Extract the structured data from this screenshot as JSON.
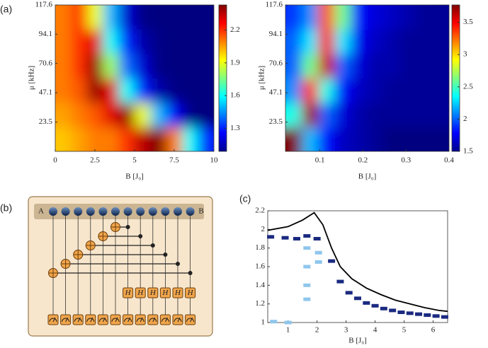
{
  "chart_data": [
    {
      "type": "heatmap",
      "panel_label": "(a)",
      "xlabel": "B [J₀]",
      "ylabel": "μ [kHz]",
      "xlim": [
        0,
        10
      ],
      "ylim": [
        0,
        117.6
      ],
      "xticks": [
        0,
        2.5,
        5,
        7.5,
        10
      ],
      "yticks": [
        23.5,
        47.1,
        70.6,
        94.1,
        117.6
      ],
      "clim": [
        1.09,
        2.43
      ],
      "cticks": [
        1.3,
        1.6,
        1.9,
        2.2
      ],
      "x": [
        0.5,
        1.5,
        2.5,
        3.5,
        4.5,
        5.5,
        6.5,
        7.5,
        8.5,
        9.5
      ],
      "y": [
        9.8,
        29.4,
        49,
        68.6,
        88.2,
        107.8
      ],
      "z": [
        [
          2.0,
          2.05,
          2.1,
          2.1,
          2.2,
          2.35,
          2.45,
          2.1,
          1.6,
          1.3
        ],
        [
          2.05,
          2.1,
          2.15,
          2.3,
          2.4,
          1.9,
          1.5,
          1.25,
          1.1,
          1.05
        ],
        [
          2.1,
          2.15,
          2.4,
          2.3,
          1.6,
          1.3,
          1.15,
          1.1,
          1.05,
          1.05
        ],
        [
          2.1,
          2.2,
          2.4,
          1.8,
          1.4,
          1.2,
          1.1,
          1.05,
          1.05,
          1.05
        ],
        [
          2.1,
          2.2,
          2.3,
          1.6,
          1.3,
          1.15,
          1.1,
          1.05,
          1.05,
          1.05
        ],
        [
          2.1,
          2.2,
          1.9,
          1.5,
          1.2,
          1.1,
          1.05,
          1.05,
          1.05,
          1.05
        ]
      ]
    },
    {
      "type": "heatmap",
      "xlabel": "B [J₀]",
      "ylabel": "μ [kHz]",
      "xlim": [
        0.02,
        0.4
      ],
      "ylim": [
        0,
        117.6
      ],
      "xticks": [
        0.1,
        0.2,
        0.3,
        0.4
      ],
      "yticks": [
        23.5,
        47.1,
        70.6,
        94.1,
        117.6
      ],
      "clim": [
        1.5,
        3.77
      ],
      "cticks": [
        1.5,
        2,
        2.5,
        3,
        3.5
      ],
      "x": [
        0.039,
        0.077,
        0.115,
        0.153,
        0.191,
        0.229,
        0.267,
        0.305,
        0.343,
        0.381
      ],
      "y": [
        9.8,
        29.4,
        49,
        68.6,
        88.2,
        107.8
      ],
      "z": [
        [
          3.8,
          2.2,
          1.8,
          1.65,
          1.6,
          1.55,
          1.5,
          1.5,
          1.5,
          1.5
        ],
        [
          2.4,
          3.7,
          2.0,
          1.7,
          1.6,
          1.55,
          1.55,
          1.55,
          1.55,
          1.55
        ],
        [
          2.1,
          3.4,
          2.4,
          1.8,
          1.65,
          1.6,
          1.55,
          1.55,
          1.55,
          1.55
        ],
        [
          2.0,
          2.6,
          3.6,
          2.0,
          1.7,
          1.6,
          1.6,
          1.55,
          1.55,
          1.55
        ],
        [
          2.0,
          2.3,
          3.5,
          2.3,
          1.75,
          1.65,
          1.6,
          1.55,
          1.55,
          1.55
        ],
        [
          1.9,
          2.1,
          3.3,
          2.6,
          1.8,
          1.7,
          1.65,
          1.6,
          1.55,
          1.55
        ]
      ]
    },
    {
      "type": "line",
      "panel_label": "(c)",
      "xlabel": "B [J₀]",
      "xlim": [
        0.3,
        6.5
      ],
      "ylim": [
        1,
        2.2
      ],
      "xticks": [
        1,
        2,
        3,
        4,
        5,
        6
      ],
      "yticks": [
        1,
        1.2,
        1.4,
        1.6,
        1.8,
        2,
        2.2
      ],
      "series": [
        {
          "kind": "line",
          "color": "#000000",
          "x": [
            0.3,
            1,
            1.5,
            1.85,
            1.9,
            2.2,
            2.5,
            2.8,
            3.2,
            3.7,
            4.2,
            4.7,
            5.2,
            5.7,
            6.2,
            6.5
          ],
          "values": [
            1.99,
            2.03,
            2.1,
            2.17,
            2.18,
            2.05,
            1.8,
            1.6,
            1.47,
            1.37,
            1.3,
            1.24,
            1.2,
            1.16,
            1.13,
            1.12
          ]
        },
        {
          "kind": "points",
          "color": "#8fc6ec",
          "x": [
            1.65,
            1.65,
            1.65,
            1.65,
            2.05,
            2.05,
            0.5,
            1.0
          ],
          "values": [
            1.8,
            1.6,
            1.4,
            1.25,
            1.75,
            1.65,
            1.01,
            1.0
          ]
        },
        {
          "kind": "points",
          "color": "#1a2a80",
          "x": [
            0.4,
            0.9,
            1.3,
            1.65,
            2.0,
            2.5,
            2.8,
            3.1,
            3.4,
            3.7,
            4.0,
            4.3,
            4.6,
            4.9,
            5.2,
            5.5,
            5.8,
            6.1,
            6.4
          ],
          "values": [
            1.92,
            1.91,
            1.9,
            1.93,
            1.9,
            1.66,
            1.44,
            1.32,
            1.26,
            1.21,
            1.18,
            1.15,
            1.13,
            1.11,
            1.1,
            1.09,
            1.08,
            1.07,
            1.06
          ]
        }
      ]
    }
  ],
  "diagram": {
    "panel_label": "(b)",
    "left_label": "A",
    "right_label": "B",
    "gate_label": "H"
  }
}
